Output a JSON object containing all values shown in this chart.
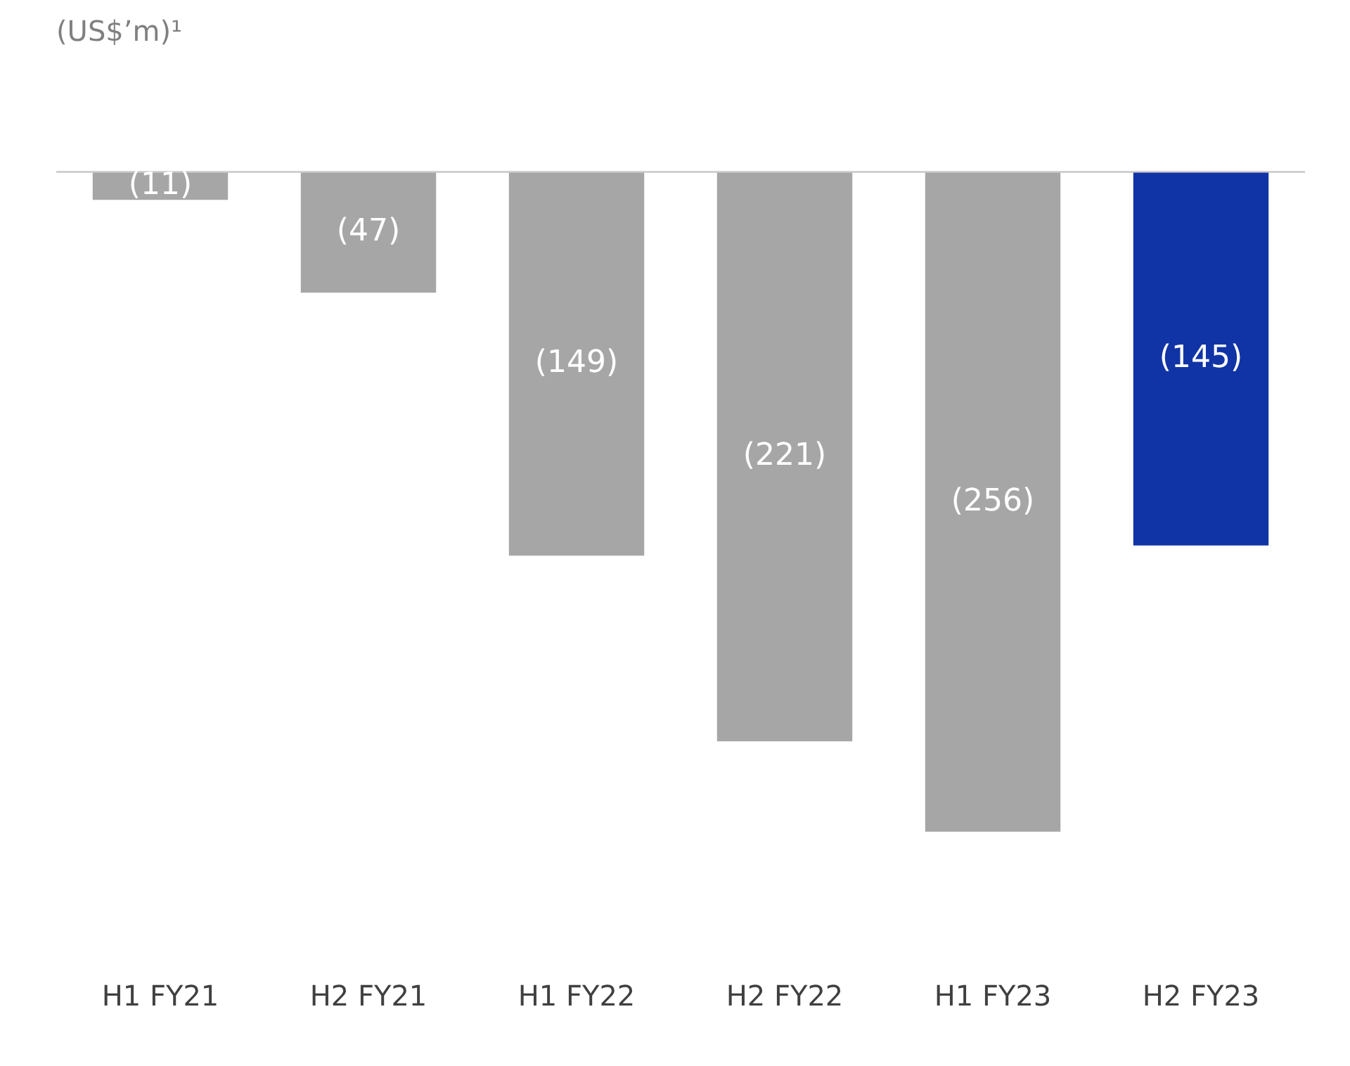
{
  "chart_data": {
    "type": "bar",
    "title": "(US$’m)¹",
    "categories": [
      "H1 FY21",
      "H2 FY21",
      "H1 FY22",
      "H2 FY22",
      "H1 FY23",
      "H2 FY23"
    ],
    "values": [
      -11,
      -47,
      -149,
      -221,
      -256,
      -145
    ],
    "colors": [
      "#a6a6a6",
      "#a6a6a6",
      "#a6a6a6",
      "#a6a6a6",
      "#a6a6a6",
      "#1034a6"
    ],
    "value_labels": [
      "(11)",
      "(47)",
      "(149)",
      "(221)",
      "(256)",
      "(145)"
    ],
    "tick_labels": "x",
    "legend": false,
    "grid": false
  }
}
